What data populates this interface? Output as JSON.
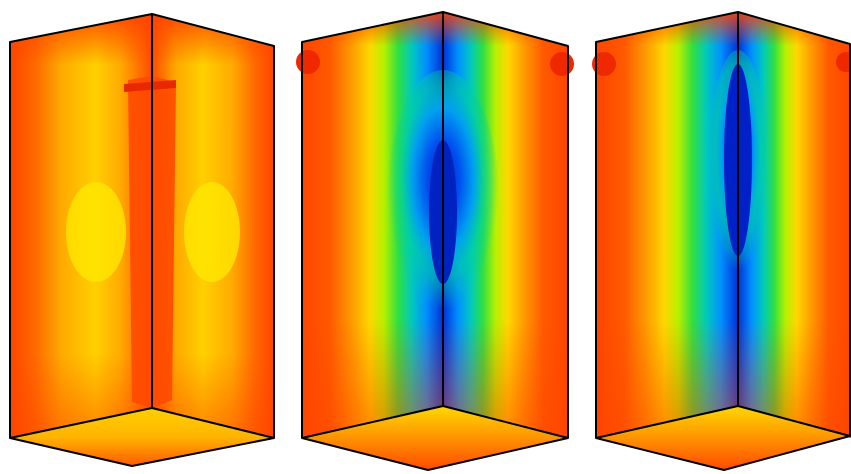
{
  "figure": {
    "panels": [
      {
        "id": "panel-1",
        "palette": [
          "#ff4400",
          "#ff7a00",
          "#ffb000",
          "#ffd400",
          "#ffe600"
        ]
      },
      {
        "id": "panel-2",
        "palette": [
          "#ff4400",
          "#ff8c00",
          "#ffc800",
          "#e8f000",
          "#9cf000",
          "#3ce000",
          "#00d6a0",
          "#00a8e8",
          "#0070ff",
          "#0030d8"
        ]
      },
      {
        "id": "panel-3",
        "palette": [
          "#ff4400",
          "#ff8c00",
          "#ffc800",
          "#e8f000",
          "#9cf000",
          "#3ce000",
          "#00d6a0",
          "#00a8e8",
          "#0070ff",
          "#0020c8"
        ]
      }
    ],
    "colors": {
      "background": "#ffffff",
      "edge": "#000000"
    }
  }
}
